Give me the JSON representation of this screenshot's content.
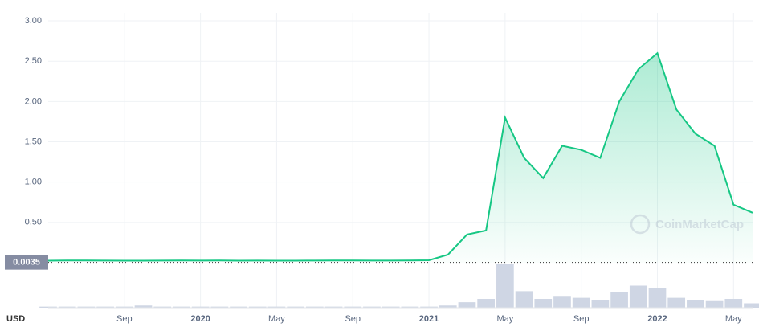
{
  "chart_data": {
    "type": "line",
    "currency": "USD",
    "watermark": "CoinMarketCap",
    "reference": {
      "value": 0.0035
    },
    "x": [
      "2019-05",
      "2019-06",
      "2019-07",
      "2019-08",
      "2019-09",
      "2019-10",
      "2019-11",
      "2019-12",
      "2020-01",
      "2020-02",
      "2020-03",
      "2020-04",
      "2020-05",
      "2020-06",
      "2020-07",
      "2020-08",
      "2020-09",
      "2020-10",
      "2020-11",
      "2020-12",
      "2021-01",
      "2021-02",
      "2021-03",
      "2021-04",
      "2021-05",
      "2021-06",
      "2021-07",
      "2021-08",
      "2021-09",
      "2021-10",
      "2021-11",
      "2021-12",
      "2022-01",
      "2022-02",
      "2022-03",
      "2022-04",
      "2022-05",
      "2022-06"
    ],
    "series": [
      {
        "color": "#16c784",
        "values": [
          0.025,
          0.028,
          0.027,
          0.026,
          0.025,
          0.025,
          0.026,
          0.027,
          0.026,
          0.027,
          0.025,
          0.026,
          0.025,
          0.025,
          0.026,
          0.027,
          0.027,
          0.026,
          0.026,
          0.027,
          0.03,
          0.1,
          0.35,
          0.4,
          1.8,
          1.3,
          1.05,
          1.45,
          1.4,
          1.3,
          2.0,
          2.4,
          2.6,
          1.9,
          1.6,
          1.45,
          0.72,
          0.62
        ]
      }
    ],
    "volume": {
      "color": "#cfd6e4",
      "values": [
        1,
        1,
        1,
        1,
        1,
        2,
        1,
        1,
        1,
        1,
        1,
        1,
        1,
        1,
        1,
        1,
        1,
        1,
        1,
        1,
        1,
        2,
        5,
        8,
        40,
        15,
        8,
        10,
        9,
        7,
        14,
        20,
        18,
        9,
        7,
        6,
        8,
        4
      ]
    },
    "xlim": [
      "2019-05",
      "2022-06"
    ],
    "xticks": [
      {
        "value": "2019-09",
        "label": "Sep"
      },
      {
        "value": "2020-01",
        "label": "2020"
      },
      {
        "value": "2020-05",
        "label": "May"
      },
      {
        "value": "2020-09",
        "label": "Sep"
      },
      {
        "value": "2021-01",
        "label": "2021"
      },
      {
        "value": "2021-05",
        "label": "May"
      },
      {
        "value": "2021-09",
        "label": "Sep"
      },
      {
        "value": "2022-01",
        "label": "2022"
      },
      {
        "value": "2022-05",
        "label": "May"
      }
    ],
    "ylim": [
      0,
      3.1
    ],
    "yticks": [
      {
        "value": 0.5,
        "label": "0.50"
      },
      {
        "value": 1,
        "label": "1.00"
      },
      {
        "value": 1.5,
        "label": "1.50"
      },
      {
        "value": 2,
        "label": "2.00"
      },
      {
        "value": 2.5,
        "label": "2.50"
      },
      {
        "value": 3,
        "label": "3.00"
      }
    ],
    "grid": true
  }
}
